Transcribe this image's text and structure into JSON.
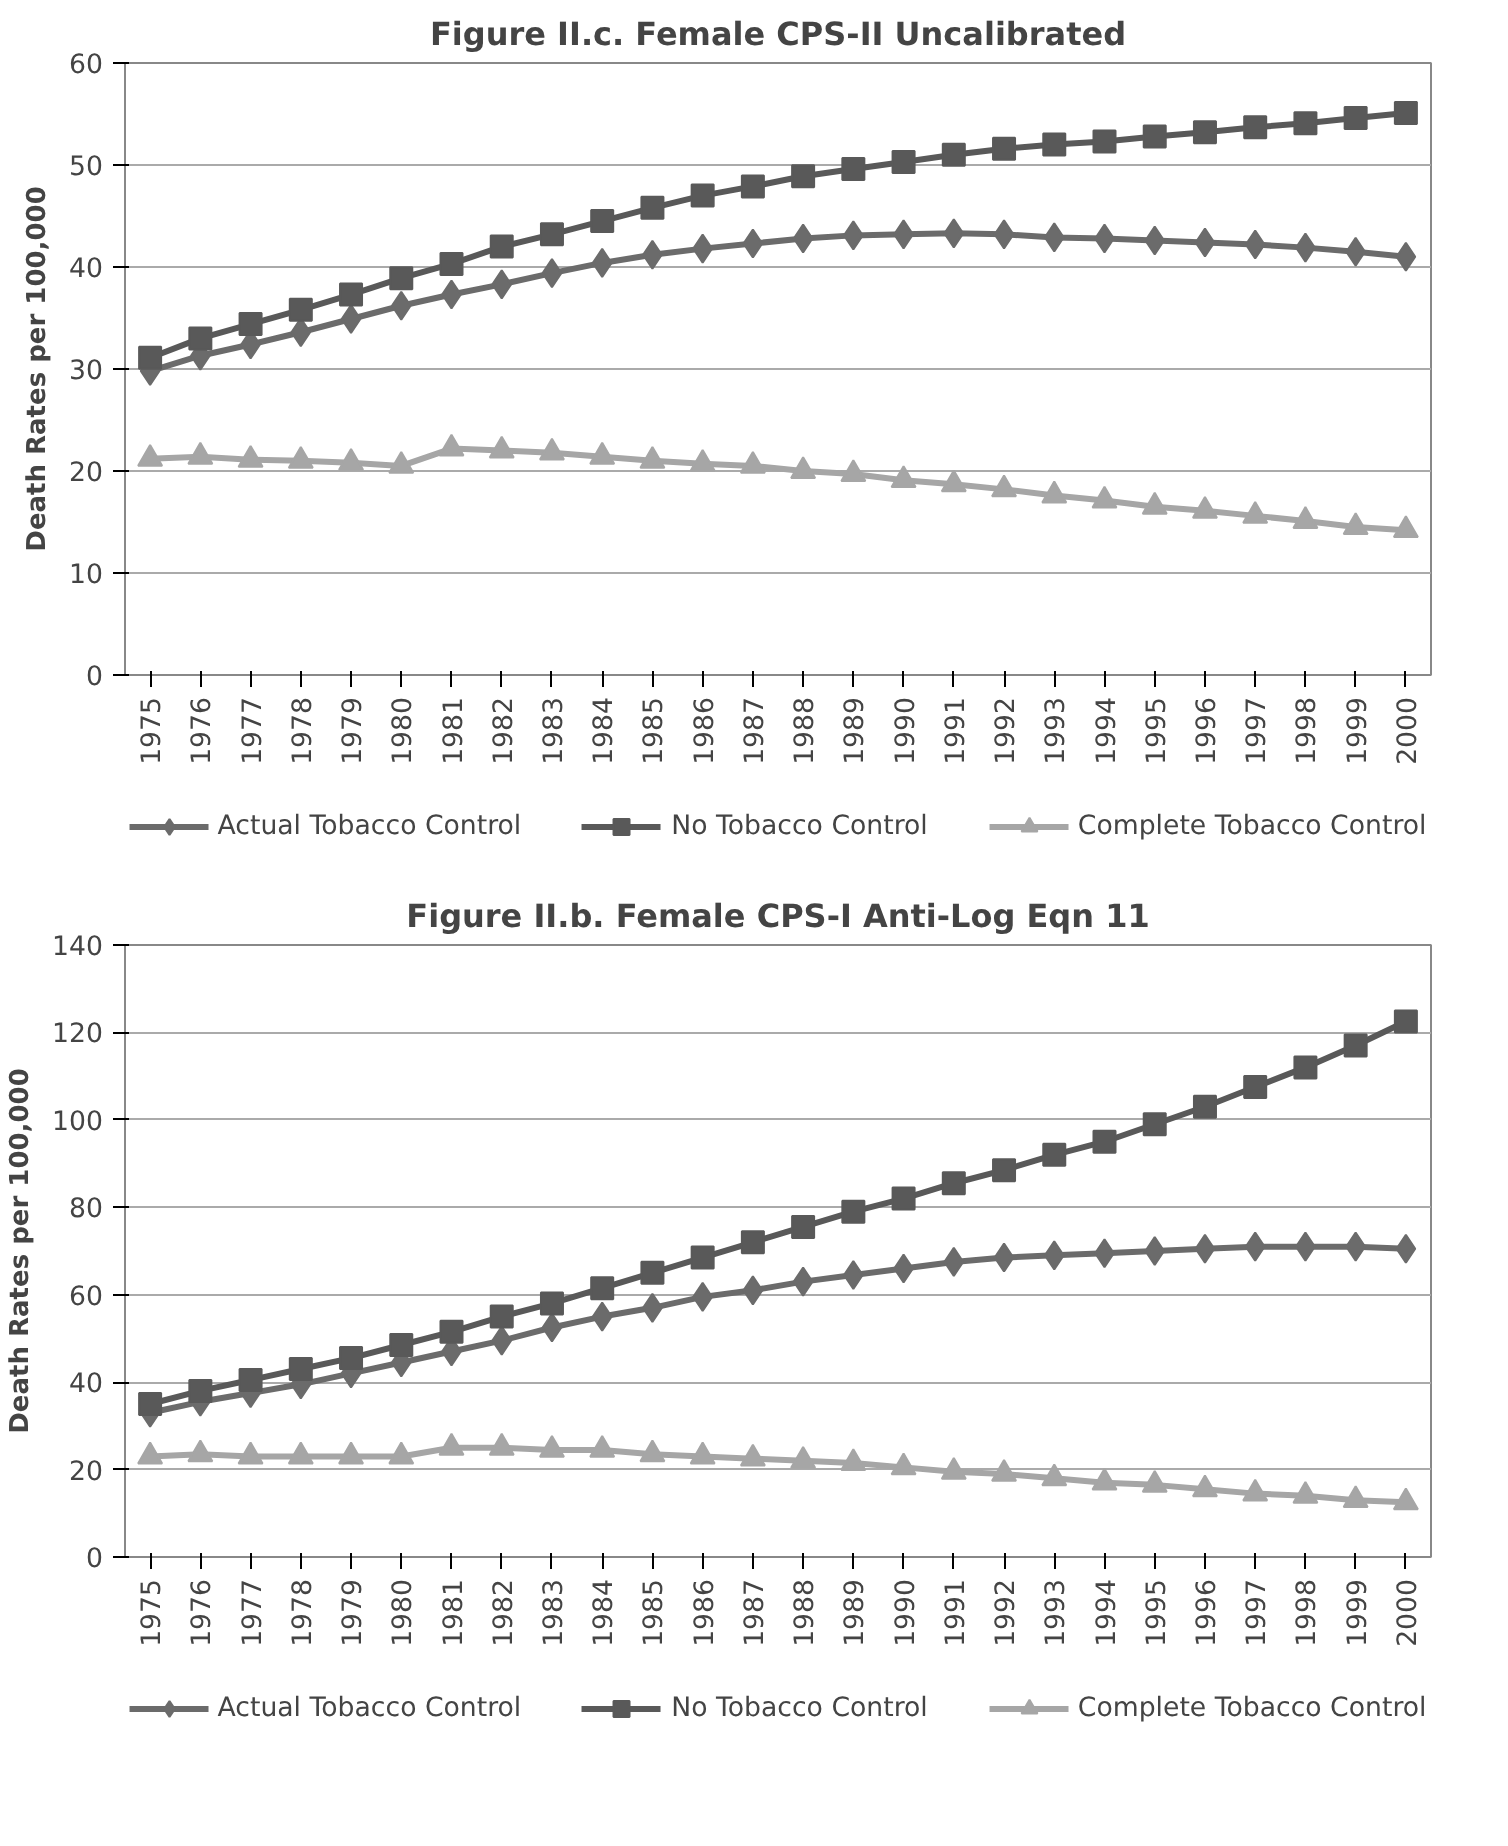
{
  "chart_data": [
    {
      "type": "line",
      "title": "Figure II.c. Female CPS-II Uncalibrated",
      "ylabel": "Death Rates per 100,000",
      "categories": [
        "1975",
        "1976",
        "1977",
        "1978",
        "1979",
        "1980",
        "1981",
        "1982",
        "1983",
        "1984",
        "1985",
        "1986",
        "1987",
        "1988",
        "1989",
        "1990",
        "1991",
        "1992",
        "1993",
        "1994",
        "1995",
        "1996",
        "1997",
        "1998",
        "1999",
        "2000"
      ],
      "series": [
        {
          "name": "Actual Tobacco Control",
          "color": "#6b6b6b",
          "marker": "diamond",
          "values": [
            29.8,
            31.3,
            32.4,
            33.6,
            34.9,
            36.2,
            37.3,
            38.3,
            39.4,
            40.4,
            41.2,
            41.8,
            42.3,
            42.8,
            43.1,
            43.2,
            43.3,
            43.2,
            42.9,
            42.8,
            42.6,
            42.4,
            42.2,
            41.9,
            41.5,
            41.0
          ]
        },
        {
          "name": "No Tobacco Control",
          "color": "#595959",
          "marker": "square",
          "values": [
            31.1,
            33.0,
            34.4,
            35.8,
            37.3,
            38.9,
            40.3,
            42.0,
            43.2,
            44.5,
            45.8,
            47.0,
            47.9,
            48.9,
            49.6,
            50.3,
            51.0,
            51.6,
            52.0,
            52.3,
            52.8,
            53.2,
            53.7,
            54.1,
            54.6,
            55.1
          ]
        },
        {
          "name": "Complete Tobacco Control",
          "color": "#a6a6a6",
          "marker": "triangle",
          "values": [
            21.2,
            21.4,
            21.1,
            21.0,
            20.8,
            20.5,
            22.2,
            22.0,
            21.8,
            21.4,
            21.0,
            20.7,
            20.5,
            20.0,
            19.7,
            19.1,
            18.7,
            18.2,
            17.6,
            17.1,
            16.5,
            16.1,
            15.6,
            15.1,
            14.5,
            14.2
          ]
        }
      ],
      "ylim": [
        0,
        60
      ],
      "yticks": [
        0,
        10,
        20,
        30,
        40,
        50,
        60
      ],
      "grid": "y",
      "legend": "bottom"
    },
    {
      "type": "line",
      "title": "Figure II.b. Female CPS-I Anti-Log Eqn 11",
      "ylabel": "Death Rates per 100,000",
      "categories": [
        "1975",
        "1976",
        "1977",
        "1978",
        "1979",
        "1980",
        "1981",
        "1982",
        "1983",
        "1984",
        "1985",
        "1986",
        "1987",
        "1988",
        "1989",
        "1990",
        "1991",
        "1992",
        "1993",
        "1994",
        "1995",
        "1996",
        "1997",
        "1998",
        "1999",
        "2000"
      ],
      "series": [
        {
          "name": "Actual Tobacco Control",
          "color": "#6b6b6b",
          "marker": "diamond",
          "values": [
            33,
            35.5,
            37.5,
            39.5,
            42,
            44.5,
            47,
            49.5,
            52.5,
            55,
            57,
            59.5,
            61,
            63,
            64.5,
            66,
            67.5,
            68.5,
            69,
            69.5,
            70,
            70.5,
            71,
            71,
            71,
            70.5
          ]
        },
        {
          "name": "No Tobacco Control",
          "color": "#595959",
          "marker": "square",
          "values": [
            35,
            38,
            40.5,
            43,
            45.5,
            48.5,
            51.5,
            55,
            58,
            61.5,
            65,
            68.5,
            72,
            75.5,
            79,
            82,
            85.5,
            88.5,
            92,
            95,
            99,
            103,
            107.5,
            112,
            117,
            122.5
          ]
        },
        {
          "name": "Complete Tobacco Control",
          "color": "#a6a6a6",
          "marker": "triangle",
          "values": [
            23,
            23.5,
            23,
            23,
            23,
            23,
            25,
            25,
            24.5,
            24.5,
            23.5,
            23,
            22.5,
            22,
            21.5,
            20.5,
            19.5,
            19,
            18,
            17,
            16.5,
            15.5,
            14.5,
            14,
            13,
            12.5
          ]
        }
      ],
      "ylim": [
        0,
        140
      ],
      "yticks": [
        0,
        20,
        40,
        60,
        80,
        100,
        120,
        140
      ],
      "grid": "y",
      "legend": "bottom"
    }
  ]
}
